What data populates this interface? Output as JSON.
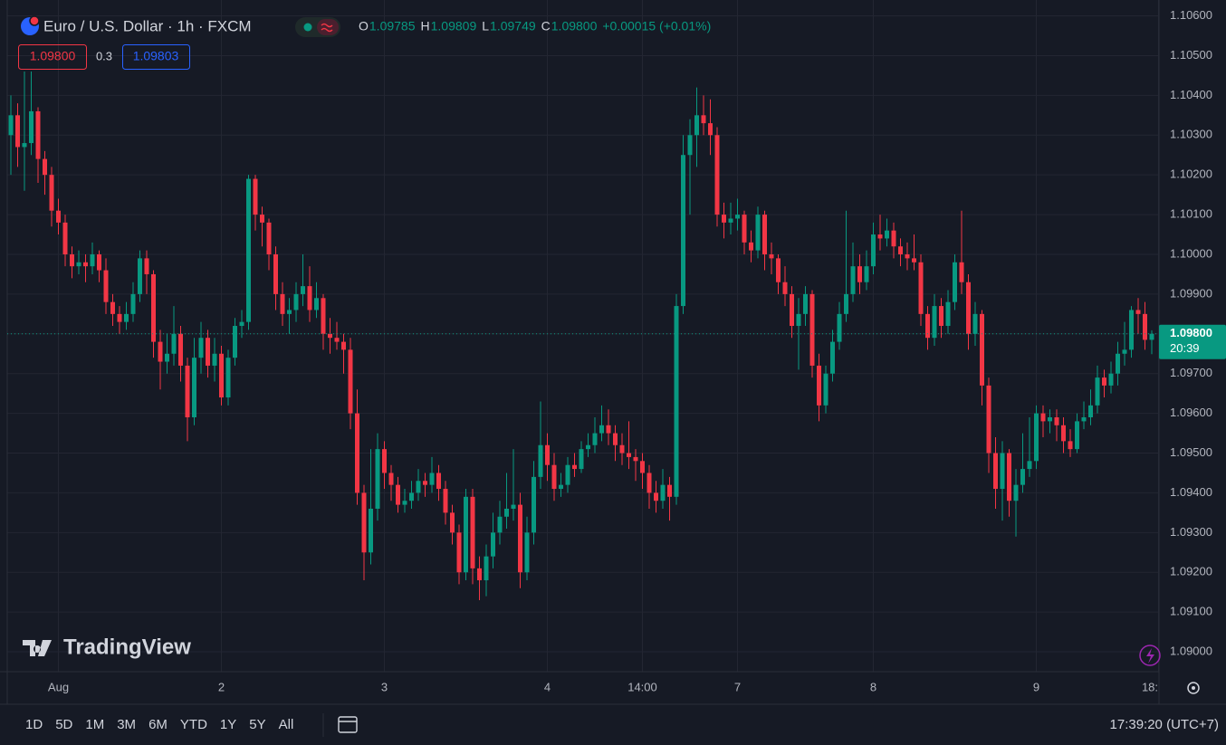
{
  "chart_data": {
    "type": "candlestick",
    "title": "Euro / U.S. Dollar · 1h · FXCM",
    "header": {
      "open_label": "O",
      "open": "1.09785",
      "high_label": "H",
      "high": "1.09809",
      "low_label": "L",
      "low": "1.09749",
      "close_label": "C",
      "close": "1.09800",
      "change": "+0.00015 (+0.01%)"
    },
    "trade": {
      "sell": "1.09800",
      "spread": "0.3",
      "buy": "1.09803"
    },
    "up_color": "#089981",
    "down_color": "#f23645",
    "ylim": [
      1.0895,
      1.1064
    ],
    "yticks": [
      {
        "value": 1.09,
        "label": "1.09000"
      },
      {
        "value": 1.091,
        "label": "1.09100"
      },
      {
        "value": 1.092,
        "label": "1.09200"
      },
      {
        "value": 1.093,
        "label": "1.09300"
      },
      {
        "value": 1.094,
        "label": "1.09400"
      },
      {
        "value": 1.095,
        "label": "1.09500"
      },
      {
        "value": 1.096,
        "label": "1.09600"
      },
      {
        "value": 1.097,
        "label": "1.09700"
      },
      {
        "value": 1.098,
        "label": "1.09800"
      },
      {
        "value": 1.099,
        "label": "1.09900"
      },
      {
        "value": 1.1,
        "label": "1.10000"
      },
      {
        "value": 1.101,
        "label": "1.10100"
      },
      {
        "value": 1.102,
        "label": "1.10200"
      },
      {
        "value": 1.103,
        "label": "1.10300"
      },
      {
        "value": 1.104,
        "label": "1.10400"
      },
      {
        "value": 1.105,
        "label": "1.10500"
      },
      {
        "value": 1.106,
        "label": "1.10600"
      }
    ],
    "xticks": [
      {
        "value": 7,
        "label": "Aug"
      },
      {
        "value": 31,
        "label": "2"
      },
      {
        "value": 55,
        "label": "3"
      },
      {
        "value": 79,
        "label": "4"
      },
      {
        "value": 93,
        "label": "14:00"
      },
      {
        "value": 107,
        "label": "7"
      },
      {
        "value": 127,
        "label": "8"
      },
      {
        "value": 151,
        "label": "9"
      },
      {
        "value": 169,
        "label": "18:"
      }
    ],
    "grid": true,
    "last_price": {
      "value": 1.098,
      "label": "1.09800"
    },
    "countdown": "20:39",
    "candles": [
      [
        1.103,
        1.104,
        1.102,
        1.1035
      ],
      [
        1.1035,
        1.1038,
        1.1022,
        1.1027
      ],
      [
        1.1027,
        1.1046,
        1.1016,
        1.1028
      ],
      [
        1.1028,
        1.1046,
        1.1025,
        1.1036
      ],
      [
        1.1036,
        1.1037,
        1.1018,
        1.1024
      ],
      [
        1.1024,
        1.1026,
        1.1015,
        1.102
      ],
      [
        1.102,
        1.1022,
        1.1007,
        1.1011
      ],
      [
        1.1011,
        1.1014,
        1.1005,
        1.1008
      ],
      [
        1.1008,
        1.101,
        1.0997,
        1.1
      ],
      [
        1.1,
        1.1002,
        1.0994,
        1.0997
      ],
      [
        1.0997,
        1.1001,
        1.0995,
        1.0998
      ],
      [
        1.0998,
        1.1,
        1.0993,
        1.0997
      ],
      [
        1.0997,
        1.1003,
        1.0995,
        1.1
      ],
      [
        1.1,
        1.1001,
        1.0993,
        1.0996
      ],
      [
        1.0996,
        1.0999,
        1.0985,
        1.0988
      ],
      [
        1.0988,
        1.099,
        1.0982,
        1.0985
      ],
      [
        1.0985,
        1.0987,
        1.098,
        1.0983
      ],
      [
        1.0983,
        1.0988,
        1.0981,
        1.0985
      ],
      [
        1.0985,
        1.0993,
        1.0983,
        1.099
      ],
      [
        1.099,
        1.1001,
        1.0988,
        1.0999
      ],
      [
        1.0999,
        1.1001,
        1.099,
        1.0995
      ],
      [
        1.0995,
        1.0996,
        1.0974,
        1.0978
      ],
      [
        1.0978,
        1.0981,
        1.0966,
        1.0973
      ],
      [
        1.0973,
        1.098,
        1.097,
        1.0975
      ],
      [
        1.0975,
        1.0987,
        1.0972,
        1.098
      ],
      [
        1.098,
        1.0982,
        1.0968,
        1.0972
      ],
      [
        1.0972,
        1.0974,
        1.0953,
        1.0959
      ],
      [
        1.0959,
        1.0979,
        1.0957,
        1.0974
      ],
      [
        1.0974,
        1.0983,
        1.097,
        1.0979
      ],
      [
        1.0979,
        1.0981,
        1.0969,
        1.0972
      ],
      [
        1.0972,
        1.0979,
        1.0968,
        1.0975
      ],
      [
        1.0975,
        1.0977,
        1.0962,
        1.0964
      ],
      [
        1.0964,
        1.0976,
        1.0962,
        1.0974
      ],
      [
        1.0974,
        1.0984,
        1.0972,
        1.0982
      ],
      [
        1.0982,
        1.0986,
        1.0979,
        1.0983
      ],
      [
        1.0983,
        1.102,
        1.0981,
        1.1019
      ],
      [
        1.1019,
        1.102,
        1.1006,
        1.101
      ],
      [
        1.101,
        1.1012,
        1.1002,
        1.1008
      ],
      [
        1.1008,
        1.1009,
        1.0996,
        1.1
      ],
      [
        1.1,
        1.1002,
        1.0986,
        1.099
      ],
      [
        1.099,
        1.0993,
        1.0982,
        1.0985
      ],
      [
        1.0985,
        1.0989,
        1.098,
        1.0986
      ],
      [
        1.0986,
        1.0993,
        1.0983,
        1.099
      ],
      [
        1.099,
        1.1,
        1.0987,
        1.0992
      ],
      [
        1.0992,
        1.0997,
        1.0983,
        1.0986
      ],
      [
        1.0986,
        1.0993,
        1.0984,
        1.0989
      ],
      [
        1.0989,
        1.099,
        1.0976,
        1.098
      ],
      [
        1.098,
        1.0984,
        1.0975,
        1.0979
      ],
      [
        1.0979,
        1.0983,
        1.0976,
        1.0978
      ],
      [
        1.0978,
        1.098,
        1.097,
        1.0976
      ],
      [
        1.0976,
        1.0979,
        1.0956,
        1.096
      ],
      [
        1.096,
        1.0966,
        1.0937,
        1.094
      ],
      [
        1.094,
        1.0942,
        1.0918,
        1.0925
      ],
      [
        1.0925,
        1.0951,
        1.0922,
        1.0936
      ],
      [
        1.0936,
        1.0955,
        1.0933,
        1.0951
      ],
      [
        1.0951,
        1.0953,
        1.0941,
        1.0945
      ],
      [
        1.0945,
        1.0947,
        1.0938,
        1.0942
      ],
      [
        1.0942,
        1.0944,
        1.0935,
        1.0937
      ],
      [
        1.0937,
        1.0941,
        1.0935,
        1.0938
      ],
      [
        1.0938,
        1.0943,
        1.0936,
        1.094
      ],
      [
        1.094,
        1.0946,
        1.0938,
        1.0943
      ],
      [
        1.0943,
        1.0945,
        1.0939,
        1.0942
      ],
      [
        1.0942,
        1.0949,
        1.094,
        1.0945
      ],
      [
        1.0945,
        1.0947,
        1.0938,
        1.0941
      ],
      [
        1.0941,
        1.0943,
        1.0932,
        1.0935
      ],
      [
        1.0935,
        1.0937,
        1.0927,
        1.093
      ],
      [
        1.093,
        1.0932,
        1.0917,
        1.092
      ],
      [
        1.092,
        1.0941,
        1.0918,
        1.0939
      ],
      [
        1.0939,
        1.0941,
        1.0917,
        1.0921
      ],
      [
        1.0921,
        1.0924,
        1.0913,
        1.0918
      ],
      [
        1.0918,
        1.0927,
        1.0914,
        1.0924
      ],
      [
        1.0924,
        1.0935,
        1.0921,
        1.093
      ],
      [
        1.093,
        1.0938,
        1.0927,
        1.0934
      ],
      [
        1.0934,
        1.0945,
        1.0931,
        1.0936
      ],
      [
        1.0936,
        1.0951,
        1.0933,
        1.0937
      ],
      [
        1.0937,
        1.094,
        1.0916,
        1.092
      ],
      [
        1.092,
        1.0934,
        1.0918,
        1.093
      ],
      [
        1.093,
        1.0948,
        1.0927,
        1.0944
      ],
      [
        1.0944,
        1.0963,
        1.0941,
        1.0952
      ],
      [
        1.0952,
        1.0955,
        1.0943,
        1.0947
      ],
      [
        1.0947,
        1.095,
        1.0938,
        1.0941
      ],
      [
        1.0941,
        1.0945,
        1.0939,
        1.0942
      ],
      [
        1.0942,
        1.0949,
        1.094,
        1.0947
      ],
      [
        1.0947,
        1.095,
        1.0944,
        1.0946
      ],
      [
        1.0946,
        1.0953,
        1.0945,
        1.0951
      ],
      [
        1.0951,
        1.0955,
        1.0949,
        1.0952
      ],
      [
        1.0952,
        1.0959,
        1.095,
        1.0955
      ],
      [
        1.0955,
        1.0962,
        1.0953,
        1.0957
      ],
      [
        1.0957,
        1.0961,
        1.0952,
        1.0955
      ],
      [
        1.0955,
        1.0957,
        1.0948,
        1.0952
      ],
      [
        1.0952,
        1.0955,
        1.0947,
        1.095
      ],
      [
        1.095,
        1.0958,
        1.0946,
        1.0949
      ],
      [
        1.0949,
        1.0951,
        1.0943,
        1.0948
      ],
      [
        1.0948,
        1.095,
        1.0941,
        1.0945
      ],
      [
        1.0945,
        1.0947,
        1.0936,
        1.094
      ],
      [
        1.094,
        1.0943,
        1.0935,
        1.0938
      ],
      [
        1.0938,
        1.0946,
        1.0936,
        1.0942
      ],
      [
        1.0942,
        1.0944,
        1.0933,
        1.0939
      ],
      [
        1.0939,
        1.099,
        1.0937,
        1.0987
      ],
      [
        1.0987,
        1.103,
        1.0985,
        1.1025
      ],
      [
        1.1025,
        1.1034,
        1.101,
        1.103
      ],
      [
        1.103,
        1.1042,
        1.1022,
        1.1035
      ],
      [
        1.1035,
        1.104,
        1.103,
        1.1033
      ],
      [
        1.1033,
        1.1039,
        1.1025,
        1.103
      ],
      [
        1.103,
        1.1032,
        1.1007,
        1.101
      ],
      [
        1.101,
        1.1013,
        1.1004,
        1.1008
      ],
      [
        1.1008,
        1.1013,
        1.1005,
        1.1009
      ],
      [
        1.1009,
        1.1014,
        1.1006,
        1.101
      ],
      [
        1.101,
        1.1011,
        1.1,
        1.1003
      ],
      [
        1.1003,
        1.1006,
        1.0998,
        1.1001
      ],
      [
        1.1001,
        1.1012,
        1.0999,
        1.101
      ],
      [
        1.101,
        1.1011,
        1.0996,
        1.1
      ],
      [
        1.1,
        1.1003,
        1.0995,
        1.0999
      ],
      [
        1.0999,
        1.1,
        1.099,
        1.0993
      ],
      [
        1.0993,
        1.0997,
        1.0987,
        1.099
      ],
      [
        1.099,
        1.0992,
        1.0979,
        1.0982
      ],
      [
        1.0982,
        1.0989,
        1.0971,
        1.0985
      ],
      [
        1.0985,
        1.0992,
        1.0982,
        1.099
      ],
      [
        1.099,
        1.0991,
        1.0969,
        1.0972
      ],
      [
        1.0972,
        1.0975,
        1.0958,
        1.0962
      ],
      [
        1.0962,
        1.0972,
        1.096,
        1.097
      ],
      [
        1.097,
        1.0981,
        1.0968,
        1.0978
      ],
      [
        1.0978,
        1.0988,
        1.0976,
        1.0985
      ],
      [
        1.0985,
        1.1011,
        1.0983,
        1.099
      ],
      [
        1.099,
        1.1003,
        1.0988,
        1.0997
      ],
      [
        1.0997,
        1.1,
        1.099,
        1.0993
      ],
      [
        1.0993,
        1.1001,
        1.0991,
        1.0997
      ],
      [
        1.0997,
        1.1008,
        1.0995,
        1.1005
      ],
      [
        1.1005,
        1.101,
        1.1001,
        1.1004
      ],
      [
        1.1004,
        1.1009,
        1.1002,
        1.1006
      ],
      [
        1.1006,
        1.1008,
        1.0999,
        1.1002
      ],
      [
        1.1002,
        1.1004,
        1.0997,
        1.1
      ],
      [
        1.1,
        1.1003,
        1.0996,
        1.0999
      ],
      [
        1.0999,
        1.1005,
        1.0996,
        1.0998
      ],
      [
        1.0998,
        1.1,
        1.0982,
        1.0985
      ],
      [
        1.0985,
        1.0987,
        1.0976,
        1.0979
      ],
      [
        1.0979,
        1.099,
        1.0977,
        1.0987
      ],
      [
        1.0987,
        1.0989,
        1.0979,
        1.0982
      ],
      [
        1.0982,
        1.0991,
        1.098,
        1.0988
      ],
      [
        1.0988,
        1.1,
        1.0986,
        1.0998
      ],
      [
        1.0998,
        1.1011,
        1.099,
        1.0993
      ],
      [
        1.0993,
        1.0995,
        1.0976,
        1.098
      ],
      [
        1.098,
        1.0988,
        1.0977,
        1.0985
      ],
      [
        1.0985,
        1.0986,
        1.0962,
        1.0967
      ],
      [
        1.0967,
        1.0969,
        1.0945,
        1.095
      ],
      [
        1.095,
        1.0954,
        1.0936,
        1.0941
      ],
      [
        1.0941,
        1.0953,
        1.0933,
        1.095
      ],
      [
        1.095,
        1.0951,
        1.0934,
        1.0938
      ],
      [
        1.0938,
        1.0946,
        1.0929,
        1.0942
      ],
      [
        1.0942,
        1.0955,
        1.094,
        1.0946
      ],
      [
        1.0946,
        1.0959,
        1.0944,
        1.0948
      ],
      [
        1.0948,
        1.0962,
        1.0946,
        1.096
      ],
      [
        1.096,
        1.0962,
        1.0954,
        1.0958
      ],
      [
        1.0958,
        1.0961,
        1.0955,
        1.0959
      ],
      [
        1.0959,
        1.0961,
        1.0953,
        1.0957
      ],
      [
        1.0957,
        1.0959,
        1.095,
        1.0953
      ],
      [
        1.0953,
        1.0956,
        1.0949,
        1.0951
      ],
      [
        1.0951,
        1.096,
        1.095,
        1.0958
      ],
      [
        1.0958,
        1.0963,
        1.0956,
        1.0959
      ],
      [
        1.0959,
        1.0966,
        1.0957,
        1.0962
      ],
      [
        1.0962,
        1.0972,
        1.096,
        1.0969
      ],
      [
        1.0969,
        1.0971,
        1.0964,
        1.0967
      ],
      [
        1.0967,
        1.0973,
        1.0965,
        1.097
      ],
      [
        1.097,
        1.0978,
        1.0967,
        1.0975
      ],
      [
        1.0975,
        1.0983,
        1.0972,
        1.0976
      ],
      [
        1.0976,
        1.0987,
        1.0974,
        1.0986
      ],
      [
        1.0986,
        1.0989,
        1.098,
        1.0985
      ],
      [
        1.0985,
        1.0988,
        1.0976,
        1.09785
      ],
      [
        1.09785,
        1.09809,
        1.09749,
        1.098
      ]
    ],
    "watermark": "TradingView",
    "range_buttons": [
      "1D",
      "5D",
      "1M",
      "3M",
      "6M",
      "YTD",
      "1Y",
      "5Y",
      "All"
    ],
    "clock": "17:39:20 (UTC+7)"
  }
}
